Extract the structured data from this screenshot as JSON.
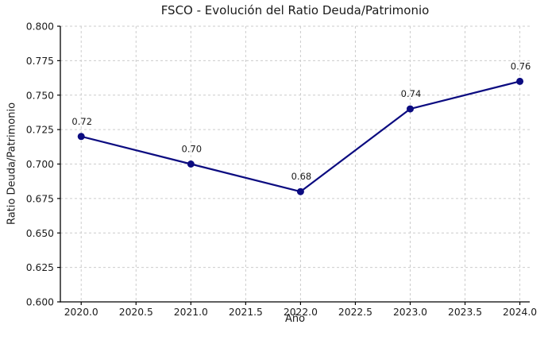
{
  "chart_data": {
    "type": "line",
    "title": "FSCO - Evolución del Ratio Deuda/Patrimonio",
    "xlabel": "Año",
    "ylabel": "Ratio Deuda/Patrimonio",
    "x": [
      2020,
      2021,
      2022,
      2023,
      2024
    ],
    "series": [
      {
        "name": "Ratio Deuda/Patrimonio",
        "values": [
          0.72,
          0.7,
          0.68,
          0.74,
          0.76
        ],
        "point_labels": [
          "0.72",
          "0.70",
          "0.68",
          "0.74",
          "0.76"
        ]
      }
    ],
    "xlim": [
      2019.81,
      2024.09
    ],
    "ylim": [
      0.6,
      0.8
    ],
    "xticks": [
      2020.0,
      2020.5,
      2021.0,
      2021.5,
      2022.0,
      2022.5,
      2023.0,
      2023.5,
      2024.0
    ],
    "xtick_labels": [
      "2020.0",
      "2020.5",
      "2021.0",
      "2021.5",
      "2022.0",
      "2022.5",
      "2023.0",
      "2023.5",
      "2024.0"
    ],
    "yticks": [
      0.6,
      0.625,
      0.65,
      0.675,
      0.7,
      0.725,
      0.75,
      0.775,
      0.8
    ],
    "ytick_labels": [
      "0.600",
      "0.625",
      "0.650",
      "0.675",
      "0.700",
      "0.725",
      "0.750",
      "0.775",
      "0.800"
    ],
    "grid": true,
    "grid_style": "dashed",
    "legend": "none",
    "marker": "circle",
    "colors": {
      "line": "#0b0b80",
      "marker": "#0b0b80",
      "grid": "#cccccc",
      "axis": "#000000",
      "text": "#1a1a1a",
      "background": "#ffffff"
    }
  }
}
